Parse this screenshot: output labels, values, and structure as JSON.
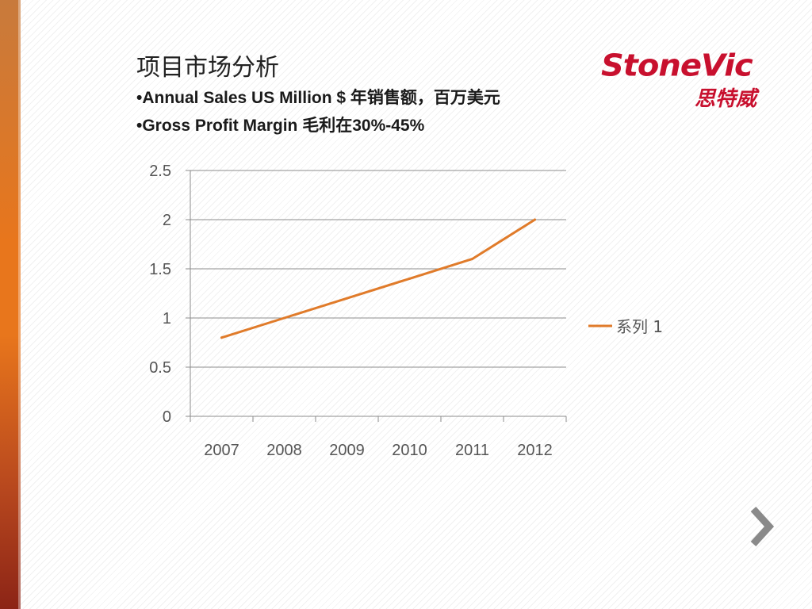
{
  "slide": {
    "title": "项目市场分析",
    "bullets": [
      "•Annual Sales US Million $ 年销售额，百万美元",
      "•Gross Profit Margin 毛利在30%-45%"
    ]
  },
  "logo": {
    "text_en": "StoneVic",
    "text_cn": "思特威",
    "color": "#c8102e"
  },
  "accent_colors": {
    "series": "#e07b2a",
    "sidebar": "#e8761c"
  },
  "chart_data": {
    "type": "line",
    "title": "",
    "xlabel": "",
    "ylabel": "",
    "categories": [
      "2007",
      "2008",
      "2009",
      "2010",
      "2011",
      "2012"
    ],
    "series": [
      {
        "name": "系列 1",
        "values": [
          0.8,
          1.0,
          1.2,
          1.4,
          1.6,
          2.0
        ],
        "color": "#e07b2a"
      }
    ],
    "ylim": [
      0,
      2.5
    ],
    "yticks": [
      "0",
      "0.5",
      "1",
      "1.5",
      "2",
      "2.5"
    ],
    "ytick_values": [
      0,
      0.5,
      1,
      1.5,
      2,
      2.5
    ],
    "grid": true,
    "legend_position": "right"
  },
  "navigation": {
    "next_icon": "chevron-right-icon"
  }
}
